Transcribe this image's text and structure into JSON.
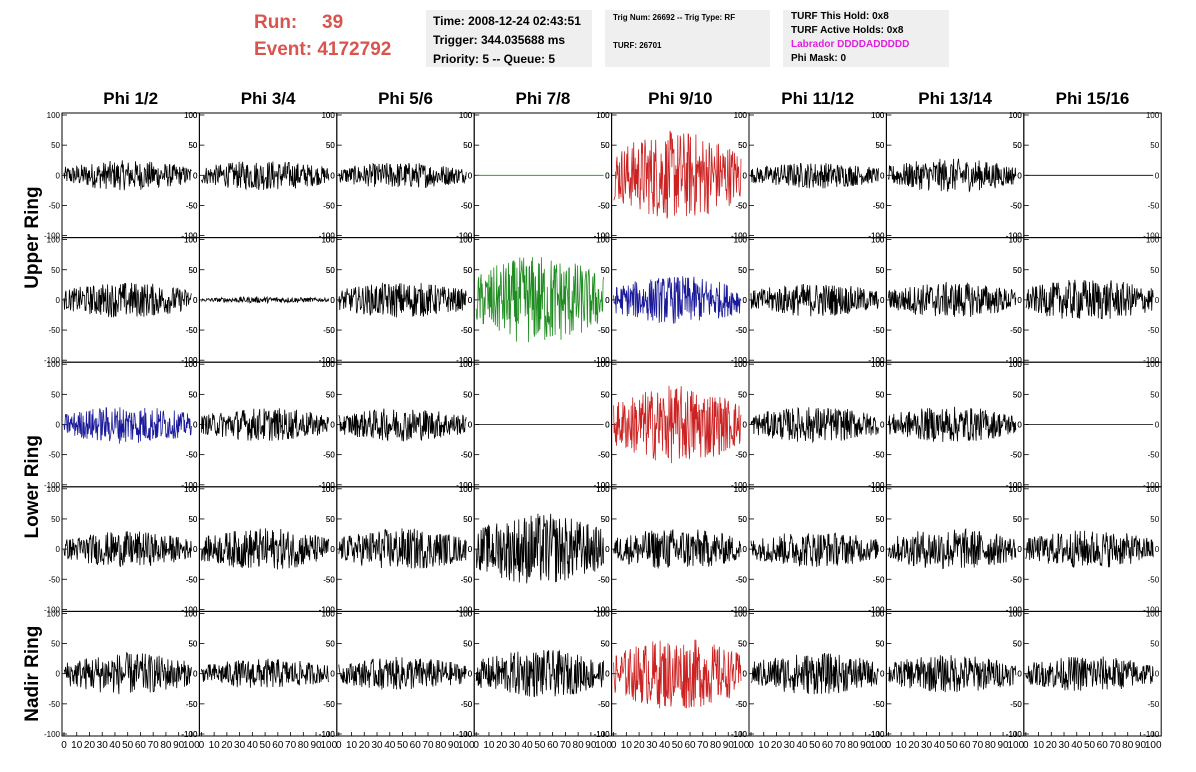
{
  "header": {
    "run_label": "Run:",
    "run_value": "39",
    "event_label": "Event:",
    "event_value": "4172792",
    "time_line": "Time: 2008-12-24 02:43:51",
    "trigger_line": "Trigger: 344.035688 ms",
    "priority_line": "Priority: 5 -- Queue: 5",
    "trig_num_line": "Trig Num: 26692 -- Trig Type: RF",
    "turf_line": "TURF: 26701",
    "turf_hold_line": "TURF This Hold: 0x8",
    "turf_active_line": "TURF Active Holds: 0x8",
    "labrador_line": "Labrador DDDDADDDDD",
    "phi_mask_line": "Phi Mask: 0"
  },
  "colors": {
    "header_red": "#d9534f",
    "labrador_magenta": "#e020e0",
    "panel_bg": "#efefef",
    "trace_black": "#000000",
    "trace_red": "#cc2222",
    "trace_green": "#1e8c1e",
    "trace_blue": "#1a1a9a"
  },
  "chart_data": {
    "type": "line",
    "columns": [
      "Phi 1/2",
      "Phi 3/4",
      "Phi 5/6",
      "Phi 7/8",
      "Phi 9/10",
      "Phi 11/12",
      "Phi 13/14",
      "Phi 15/16"
    ],
    "ring_labels": [
      {
        "label": "Upper Ring",
        "rows": [
          0,
          1
        ]
      },
      {
        "label": "Lower Ring",
        "rows": [
          2,
          3
        ]
      },
      {
        "label": "Nadir Ring",
        "rows": [
          4
        ]
      }
    ],
    "ylim": [
      -100,
      100
    ],
    "yticks": [
      -100,
      -50,
      0,
      50,
      100
    ],
    "xlim": [
      0,
      100
    ],
    "xticks": [
      0,
      10,
      20,
      30,
      40,
      50,
      60,
      70,
      80,
      90,
      100
    ],
    "xtick_labels": [
      "0",
      "10",
      "20",
      "30",
      "40",
      "50",
      "60",
      "70",
      "80",
      "90",
      "100"
    ],
    "panels": [
      [
        {
          "color": "black",
          "amp": 25,
          "kind": "noise"
        },
        {
          "color": "black",
          "amp": 25,
          "kind": "noise"
        },
        {
          "color": "black",
          "amp": 22,
          "kind": "noise"
        },
        {
          "color": "green",
          "amp": 0,
          "kind": "flat"
        },
        {
          "color": "red",
          "amp": 75,
          "kind": "noise"
        },
        {
          "color": "black",
          "amp": 22,
          "kind": "noise"
        },
        {
          "color": "black",
          "amp": 28,
          "kind": "noise"
        },
        {
          "color": "black",
          "amp": 0,
          "kind": "flat"
        }
      ],
      [
        {
          "color": "black",
          "amp": 30,
          "kind": "noise"
        },
        {
          "color": "black",
          "amp": 5,
          "kind": "noise"
        },
        {
          "color": "black",
          "amp": 30,
          "kind": "noise"
        },
        {
          "color": "green",
          "amp": 75,
          "kind": "noise"
        },
        {
          "color": "blue",
          "amp": 40,
          "kind": "noise"
        },
        {
          "color": "black",
          "amp": 28,
          "kind": "noise"
        },
        {
          "color": "black",
          "amp": 30,
          "kind": "noise"
        },
        {
          "color": "black",
          "amp": 35,
          "kind": "noise"
        }
      ],
      [
        {
          "color": "blue",
          "amp": 32,
          "kind": "noise"
        },
        {
          "color": "black",
          "amp": 28,
          "kind": "noise"
        },
        {
          "color": "black",
          "amp": 28,
          "kind": "noise"
        },
        {
          "color": "black",
          "amp": 0,
          "kind": "flat"
        },
        {
          "color": "red",
          "amp": 65,
          "kind": "noise"
        },
        {
          "color": "black",
          "amp": 30,
          "kind": "noise"
        },
        {
          "color": "black",
          "amp": 30,
          "kind": "noise"
        },
        {
          "color": "black",
          "amp": 0,
          "kind": "flat"
        }
      ],
      [
        {
          "color": "black",
          "amp": 30,
          "kind": "noise"
        },
        {
          "color": "black",
          "amp": 35,
          "kind": "noise"
        },
        {
          "color": "black",
          "amp": 35,
          "kind": "noise"
        },
        {
          "color": "black",
          "amp": 60,
          "kind": "noise"
        },
        {
          "color": "black",
          "amp": 35,
          "kind": "noise"
        },
        {
          "color": "black",
          "amp": 30,
          "kind": "noise"
        },
        {
          "color": "black",
          "amp": 35,
          "kind": "noise"
        },
        {
          "color": "black",
          "amp": 32,
          "kind": "noise"
        }
      ],
      [
        {
          "color": "black",
          "amp": 35,
          "kind": "noise"
        },
        {
          "color": "black",
          "amp": 25,
          "kind": "noise"
        },
        {
          "color": "black",
          "amp": 28,
          "kind": "noise"
        },
        {
          "color": "black",
          "amp": 40,
          "kind": "noise"
        },
        {
          "color": "red",
          "amp": 60,
          "kind": "noise"
        },
        {
          "color": "black",
          "amp": 35,
          "kind": "noise"
        },
        {
          "color": "black",
          "amp": 32,
          "kind": "noise"
        },
        {
          "color": "black",
          "amp": 30,
          "kind": "noise"
        }
      ]
    ]
  }
}
